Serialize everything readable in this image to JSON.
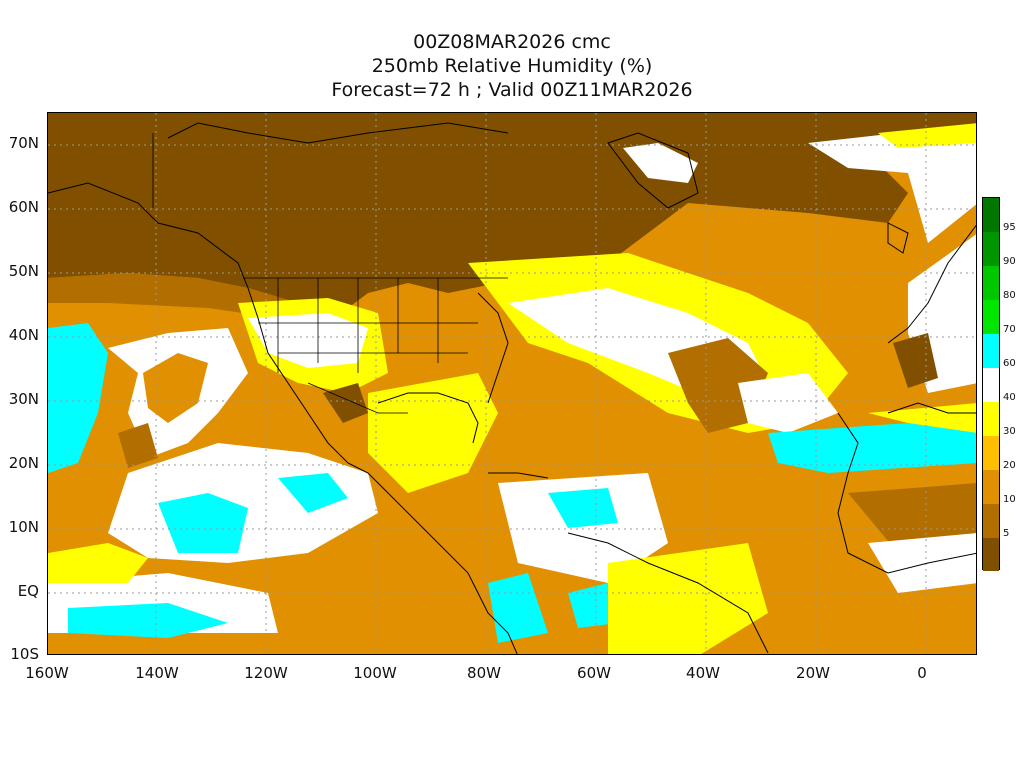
{
  "title": {
    "line1": "00Z08MAR2026 cmc",
    "line2": "250mb Relative Humidity (%)",
    "line3": "Forecast=72 h ; Valid 00Z11MAR2026"
  },
  "lat_labels": [
    "70N",
    "60N",
    "50N",
    "40N",
    "30N",
    "20N",
    "10N",
    "EQ",
    "10S"
  ],
  "lon_labels": [
    "160W",
    "140W",
    "120W",
    "100W",
    "80W",
    "60W",
    "40W",
    "20W",
    "0"
  ],
  "colorbar": {
    "levels": [
      "5",
      "10",
      "20",
      "30",
      "40",
      "60",
      "70",
      "80",
      "90",
      "95"
    ],
    "colors": [
      "#805000",
      "#b26f00",
      "#e09000",
      "#ffbe00",
      "#ffff00",
      "#ffffff",
      "#00ffff",
      "#00e600",
      "#00c800",
      "#009600",
      "#007800"
    ]
  },
  "legend_colors": {
    "very_dry": "#805000",
    "dry": "#b26f00",
    "moderate_dry": "#e09000",
    "light": "#ffbe00",
    "yellow": "#ffff00",
    "white": "#ffffff",
    "cyan": "#00ffff"
  }
}
